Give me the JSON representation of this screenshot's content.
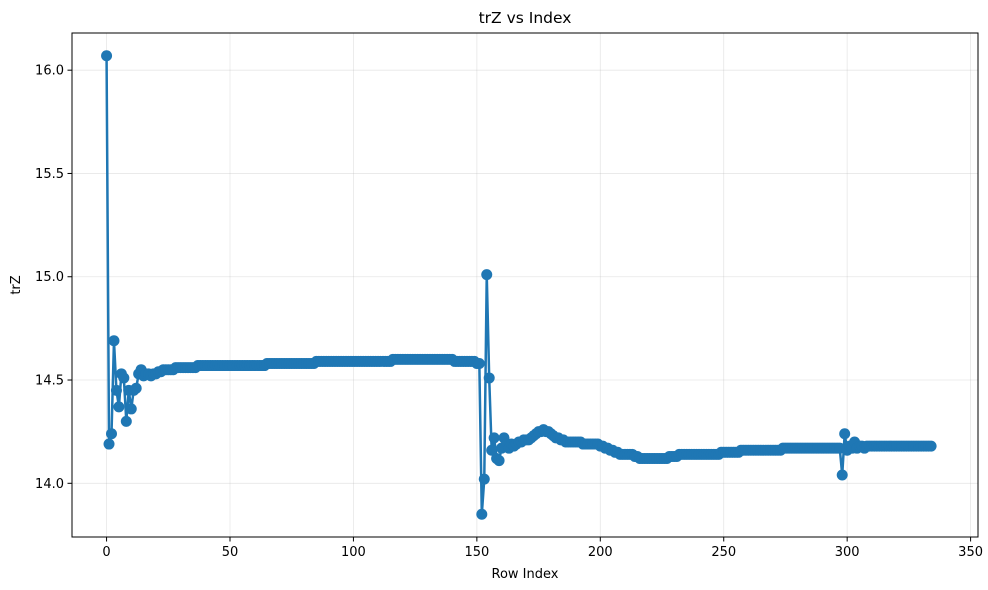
{
  "chart_data": {
    "type": "line",
    "title": "trZ vs Index",
    "xlabel": "Row Index",
    "ylabel": "trZ",
    "xlim": [
      -14,
      353
    ],
    "ylim": [
      13.74,
      16.18
    ],
    "xticks": [
      0,
      50,
      100,
      150,
      200,
      250,
      300,
      350
    ],
    "yticks": [
      14.0,
      14.5,
      15.0,
      15.5,
      16.0
    ],
    "ytick_labels": [
      "14.0",
      "14.5",
      "15.0",
      "15.5",
      "16.0"
    ],
    "grid": true,
    "markers": true,
    "color": "#1f77b4",
    "series": [
      {
        "values": [
          16.07,
          14.19,
          14.24,
          14.69,
          14.45,
          14.37,
          14.53,
          14.51,
          14.3,
          14.45,
          14.36,
          14.45,
          14.46,
          14.53,
          14.55,
          14.52,
          14.53,
          14.53,
          14.52,
          14.53,
          14.53,
          14.54,
          14.54,
          14.55,
          14.55,
          14.55,
          14.55,
          14.55,
          14.56,
          14.56,
          14.56,
          14.56,
          14.56,
          14.56,
          14.56,
          14.56,
          14.56,
          14.57,
          14.57,
          14.57,
          14.57,
          14.57,
          14.57,
          14.57,
          14.57,
          14.57,
          14.57,
          14.57,
          14.57,
          14.57,
          14.57,
          14.57,
          14.57,
          14.57,
          14.57,
          14.57,
          14.57,
          14.57,
          14.57,
          14.57,
          14.57,
          14.57,
          14.57,
          14.57,
          14.57,
          14.58,
          14.58,
          14.58,
          14.58,
          14.58,
          14.58,
          14.58,
          14.58,
          14.58,
          14.58,
          14.58,
          14.58,
          14.58,
          14.58,
          14.58,
          14.58,
          14.58,
          14.58,
          14.58,
          14.58,
          14.59,
          14.59,
          14.59,
          14.59,
          14.59,
          14.59,
          14.59,
          14.59,
          14.59,
          14.59,
          14.59,
          14.59,
          14.59,
          14.59,
          14.59,
          14.59,
          14.59,
          14.59,
          14.59,
          14.59,
          14.59,
          14.59,
          14.59,
          14.59,
          14.59,
          14.59,
          14.59,
          14.59,
          14.59,
          14.59,
          14.59,
          14.6,
          14.6,
          14.6,
          14.6,
          14.6,
          14.6,
          14.6,
          14.6,
          14.6,
          14.6,
          14.6,
          14.6,
          14.6,
          14.6,
          14.6,
          14.6,
          14.6,
          14.6,
          14.6,
          14.6,
          14.6,
          14.6,
          14.6,
          14.6,
          14.6,
          14.59,
          14.59,
          14.59,
          14.59,
          14.59,
          14.59,
          14.59,
          14.59,
          14.59,
          14.58,
          14.58,
          13.85,
          14.02,
          15.01,
          14.51,
          14.16,
          14.22,
          14.12,
          14.11,
          14.17,
          14.22,
          14.19,
          14.17,
          14.19,
          14.18,
          14.19,
          14.2,
          14.2,
          14.21,
          14.21,
          14.21,
          14.22,
          14.23,
          14.24,
          14.25,
          14.25,
          14.26,
          14.25,
          14.25,
          14.24,
          14.23,
          14.22,
          14.22,
          14.21,
          14.21,
          14.2,
          14.2,
          14.2,
          14.2,
          14.2,
          14.2,
          14.2,
          14.19,
          14.19,
          14.19,
          14.19,
          14.19,
          14.19,
          14.19,
          14.18,
          14.18,
          14.17,
          14.17,
          14.16,
          14.16,
          14.15,
          14.15,
          14.14,
          14.14,
          14.14,
          14.14,
          14.14,
          14.14,
          14.13,
          14.13,
          14.12,
          14.12,
          14.12,
          14.12,
          14.12,
          14.12,
          14.12,
          14.12,
          14.12,
          14.12,
          14.12,
          14.12,
          14.13,
          14.13,
          14.13,
          14.13,
          14.14,
          14.14,
          14.14,
          14.14,
          14.14,
          14.14,
          14.14,
          14.14,
          14.14,
          14.14,
          14.14,
          14.14,
          14.14,
          14.14,
          14.14,
          14.14,
          14.14,
          14.15,
          14.15,
          14.15,
          14.15,
          14.15,
          14.15,
          14.15,
          14.15,
          14.16,
          14.16,
          14.16,
          14.16,
          14.16,
          14.16,
          14.16,
          14.16,
          14.16,
          14.16,
          14.16,
          14.16,
          14.16,
          14.16,
          14.16,
          14.16,
          14.16,
          14.17,
          14.17,
          14.17,
          14.17,
          14.17,
          14.17,
          14.17,
          14.17,
          14.17,
          14.17,
          14.17,
          14.17,
          14.17,
          14.17,
          14.17,
          14.17,
          14.17,
          14.17,
          14.17,
          14.17,
          14.17,
          14.17,
          14.17,
          14.17,
          14.04,
          14.24,
          14.16,
          14.18,
          14.17,
          14.2,
          14.17,
          14.18,
          14.18,
          14.17,
          14.18,
          14.18,
          14.18,
          14.18,
          14.18,
          14.18,
          14.18,
          14.18,
          14.18,
          14.18,
          14.18,
          14.18,
          14.18,
          14.18,
          14.18,
          14.18,
          14.18,
          14.18,
          14.18,
          14.18,
          14.18,
          14.18,
          14.18,
          14.18,
          14.18,
          14.18,
          14.18
        ]
      }
    ]
  }
}
